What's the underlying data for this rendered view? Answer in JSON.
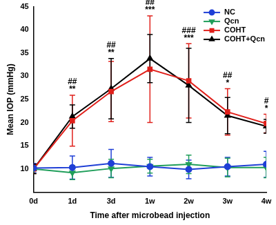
{
  "chart_data": {
    "type": "line",
    "x_label": "Time after microbead injection",
    "y_label": "Mean IOP (mmHg)",
    "categories": [
      "0d",
      "1d",
      "3d",
      "1w",
      "2w",
      "3w",
      "4w"
    ],
    "series": [
      {
        "name": "NC",
        "color": "#1f3fd6",
        "marker": "circle",
        "values": [
          10.2,
          10.3,
          11.2,
          10.5,
          9.9,
          10.5,
          11.0
        ],
        "errors": [
          1.0,
          2.5,
          3.0,
          2.0,
          2.0,
          2.0,
          2.8
        ]
      },
      {
        "name": "Qcn",
        "color": "#1f9e5a",
        "marker": "triangle_down",
        "values": [
          10.0,
          9.2,
          10.1,
          10.6,
          11.0,
          10.3,
          10.3
        ],
        "errors": [
          1.0,
          1.5,
          2.0,
          1.5,
          2.0,
          2.0,
          2.2
        ]
      },
      {
        "name": "COHT",
        "color": "#e0201b",
        "marker": "square",
        "values": [
          10.0,
          20.4,
          26.7,
          31.5,
          29.0,
          22.3,
          19.8
        ],
        "errors": [
          1.0,
          5.5,
          6.5,
          11.5,
          8.0,
          5.0,
          2.0
        ]
      },
      {
        "name": "COHT+Qcn",
        "color": "#000000",
        "marker": "triangle",
        "values": [
          10.0,
          21.3,
          27.3,
          33.8,
          28.0,
          21.5,
          19.2
        ],
        "errors": [
          1.0,
          2.5,
          6.5,
          5.2,
          8.0,
          3.9,
          1.5
        ]
      }
    ],
    "annotations": [
      {
        "x": "1d",
        "labels": [
          "##",
          "**"
        ]
      },
      {
        "x": "3d",
        "labels": [
          "##",
          "**"
        ]
      },
      {
        "x": "1w",
        "labels": [
          "##",
          "***"
        ]
      },
      {
        "x": "2w",
        "labels": [
          "###",
          "***"
        ]
      },
      {
        "x": "3w",
        "labels": [
          "##",
          "*"
        ]
      },
      {
        "x": "4w",
        "labels": [
          "#",
          "*"
        ]
      }
    ],
    "ylim": [
      5,
      45
    ],
    "yticks": [
      10,
      15,
      20,
      25,
      30,
      35,
      40,
      45
    ],
    "grid": false,
    "legend": "upper right"
  }
}
